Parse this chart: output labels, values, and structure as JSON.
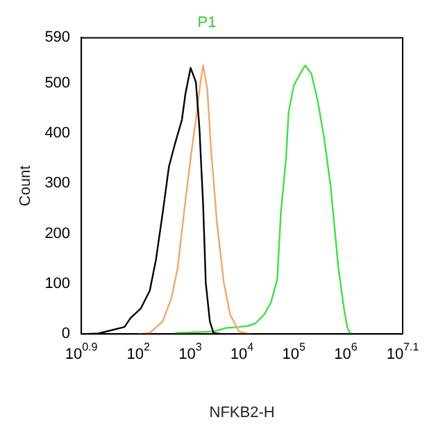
{
  "chart_data": {
    "type": "line",
    "title": "P1",
    "xlabel": "NFKB2-H",
    "ylabel": "Count",
    "log": "x",
    "grid": false,
    "legend": false,
    "marker": "none",
    "line_style": "solid",
    "xlim": [
      7.943,
      12590000
    ],
    "xticks": [
      {
        "value": 7.943,
        "label": "10$^{0.9}$"
      },
      {
        "value": 100,
        "label": "10$^{2}$"
      },
      {
        "value": 1000,
        "label": "10$^{3}$"
      },
      {
        "value": 10000,
        "label": "10$^{4}$"
      },
      {
        "value": 100000,
        "label": "10$^{5}$"
      },
      {
        "value": 1000000,
        "label": "10$^{6}$"
      },
      {
        "value": 12590000,
        "label": "10$^{7.1}$"
      }
    ],
    "ylim": [
      0,
      590
    ],
    "yticks": [
      0,
      100,
      200,
      300,
      400,
      500,
      590
    ],
    "series": [
      {
        "color": "#000000",
        "x": [
          10,
          17,
          54,
          71,
          112,
          166,
          219,
          295,
          389,
          513,
          692,
          813,
          1020,
          1290,
          1510,
          1780,
          2000,
          2400,
          2820,
          3980
        ],
        "values": [
          0,
          1,
          14,
          32,
          51,
          86,
          148,
          241,
          333,
          380,
          426,
          479,
          530,
          502,
          410,
          257,
          102,
          25,
          2,
          0
        ]
      },
      {
        "color": "#f4a56a",
        "x": [
          100,
          166,
          295,
          437,
          575,
          759,
          1020,
          1350,
          1580,
          1780,
          2140,
          2510,
          3310,
          4470,
          5890,
          8710,
          13800
        ],
        "values": [
          0,
          2,
          25,
          72,
          132,
          241,
          350,
          442,
          502,
          535,
          488,
          373,
          218,
          102,
          39,
          5,
          0
        ]
      },
      {
        "color": "#44dd44",
        "x": [
          513,
          2820,
          5010,
          8710,
          12900,
          18200,
          26900,
          36300,
          47900,
          56200,
          70800,
          79400,
          100000,
          132000,
          166000,
          219000,
          288000,
          389000,
          513000,
          603000,
          724000,
          912000,
          1070000,
          1200000,
          1410000
        ],
        "values": [
          2,
          5,
          12,
          14,
          16,
          21,
          39,
          63,
          109,
          241,
          350,
          442,
          495,
          518,
          535,
          518,
          465,
          387,
          294,
          218,
          132,
          56,
          14,
          2,
          0
        ]
      }
    ]
  }
}
